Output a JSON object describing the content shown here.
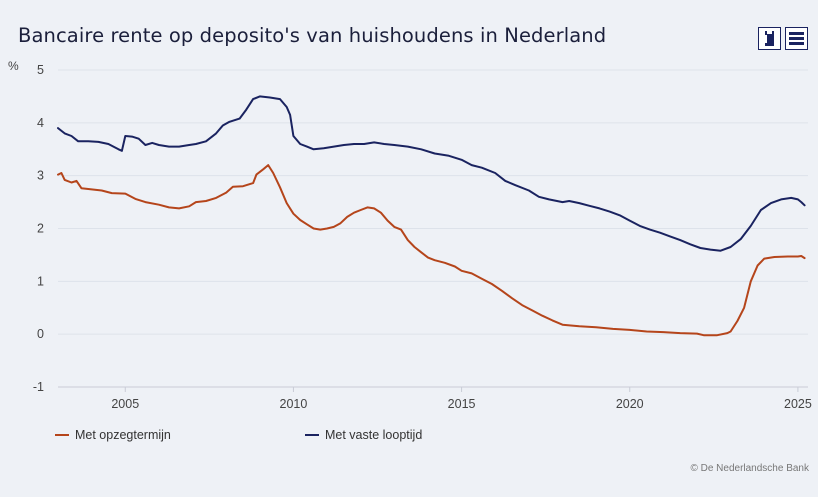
{
  "title": "Bancaire rente op deposito's van huishoudens in Nederland",
  "buttons": {
    "info": "info-icon",
    "menu": "menu-icon"
  },
  "credit": "© De Nederlandsche Bank",
  "colors": {
    "background": "#eef1f6",
    "opzeg": "#b5451b",
    "vast": "#1a2360",
    "grid": "#dde2ea"
  },
  "chart_data": {
    "type": "line",
    "title": "Bancaire rente op deposito's van huishoudens in Nederland",
    "xlabel": "",
    "ylabel": "%",
    "xlim": [
      2003,
      2025.3
    ],
    "ylim": [
      -1,
      5
    ],
    "yticks": [
      "-1",
      "0",
      "1",
      "2",
      "3",
      "4",
      "5"
    ],
    "xticks": [
      "2005",
      "2010",
      "2015",
      "2020",
      "2025"
    ],
    "grid": true,
    "legend_position": "bottom",
    "series": [
      {
        "name": "Met opzegtermijn",
        "color": "#b5451b",
        "points": [
          [
            2003.0,
            3.02
          ],
          [
            2003.1,
            3.05
          ],
          [
            2003.2,
            2.92
          ],
          [
            2003.4,
            2.87
          ],
          [
            2003.55,
            2.9
          ],
          [
            2003.7,
            2.76
          ],
          [
            2004.0,
            2.74
          ],
          [
            2004.3,
            2.72
          ],
          [
            2004.6,
            2.67
          ],
          [
            2005.0,
            2.66
          ],
          [
            2005.3,
            2.56
          ],
          [
            2005.6,
            2.5
          ],
          [
            2006.0,
            2.45
          ],
          [
            2006.3,
            2.4
          ],
          [
            2006.6,
            2.38
          ],
          [
            2006.9,
            2.42
          ],
          [
            2007.1,
            2.5
          ],
          [
            2007.4,
            2.52
          ],
          [
            2007.7,
            2.58
          ],
          [
            2008.0,
            2.68
          ],
          [
            2008.2,
            2.79
          ],
          [
            2008.5,
            2.8
          ],
          [
            2008.8,
            2.86
          ],
          [
            2008.9,
            3.02
          ],
          [
            2009.1,
            3.12
          ],
          [
            2009.25,
            3.2
          ],
          [
            2009.4,
            3.05
          ],
          [
            2009.6,
            2.78
          ],
          [
            2009.8,
            2.48
          ],
          [
            2010.0,
            2.28
          ],
          [
            2010.2,
            2.16
          ],
          [
            2010.4,
            2.08
          ],
          [
            2010.6,
            2.0
          ],
          [
            2010.8,
            1.98
          ],
          [
            2011.0,
            2.0
          ],
          [
            2011.2,
            2.03
          ],
          [
            2011.4,
            2.1
          ],
          [
            2011.6,
            2.22
          ],
          [
            2011.8,
            2.3
          ],
          [
            2012.0,
            2.35
          ],
          [
            2012.2,
            2.4
          ],
          [
            2012.4,
            2.38
          ],
          [
            2012.6,
            2.3
          ],
          [
            2012.8,
            2.15
          ],
          [
            2013.0,
            2.03
          ],
          [
            2013.2,
            1.98
          ],
          [
            2013.4,
            1.78
          ],
          [
            2013.6,
            1.65
          ],
          [
            2013.8,
            1.55
          ],
          [
            2014.0,
            1.45
          ],
          [
            2014.2,
            1.4
          ],
          [
            2014.5,
            1.35
          ],
          [
            2014.8,
            1.28
          ],
          [
            2015.0,
            1.2
          ],
          [
            2015.3,
            1.15
          ],
          [
            2015.6,
            1.05
          ],
          [
            2015.9,
            0.95
          ],
          [
            2016.2,
            0.82
          ],
          [
            2016.5,
            0.68
          ],
          [
            2016.8,
            0.55
          ],
          [
            2017.1,
            0.45
          ],
          [
            2017.4,
            0.35
          ],
          [
            2017.7,
            0.26
          ],
          [
            2018.0,
            0.18
          ],
          [
            2018.5,
            0.15
          ],
          [
            2019.0,
            0.13
          ],
          [
            2019.5,
            0.1
          ],
          [
            2020.0,
            0.08
          ],
          [
            2020.5,
            0.05
          ],
          [
            2021.0,
            0.04
          ],
          [
            2021.5,
            0.02
          ],
          [
            2022.0,
            0.01
          ],
          [
            2022.2,
            -0.02
          ],
          [
            2022.6,
            -0.02
          ],
          [
            2022.9,
            0.02
          ],
          [
            2023.0,
            0.05
          ],
          [
            2023.2,
            0.25
          ],
          [
            2023.4,
            0.5
          ],
          [
            2023.6,
            1.0
          ],
          [
            2023.8,
            1.3
          ],
          [
            2024.0,
            1.43
          ],
          [
            2024.3,
            1.46
          ],
          [
            2024.7,
            1.47
          ],
          [
            2025.0,
            1.47
          ],
          [
            2025.1,
            1.48
          ],
          [
            2025.2,
            1.44
          ]
        ]
      },
      {
        "name": "Met vaste looptijd",
        "color": "#1a2360",
        "points": [
          [
            2003.0,
            3.9
          ],
          [
            2003.2,
            3.8
          ],
          [
            2003.4,
            3.75
          ],
          [
            2003.6,
            3.65
          ],
          [
            2003.9,
            3.65
          ],
          [
            2004.2,
            3.64
          ],
          [
            2004.5,
            3.6
          ],
          [
            2004.8,
            3.5
          ],
          [
            2004.9,
            3.47
          ],
          [
            2005.0,
            3.75
          ],
          [
            2005.2,
            3.74
          ],
          [
            2005.4,
            3.7
          ],
          [
            2005.6,
            3.58
          ],
          [
            2005.8,
            3.62
          ],
          [
            2006.0,
            3.58
          ],
          [
            2006.3,
            3.55
          ],
          [
            2006.6,
            3.55
          ],
          [
            2006.9,
            3.58
          ],
          [
            2007.1,
            3.6
          ],
          [
            2007.4,
            3.65
          ],
          [
            2007.7,
            3.8
          ],
          [
            2007.9,
            3.95
          ],
          [
            2008.1,
            4.02
          ],
          [
            2008.4,
            4.08
          ],
          [
            2008.6,
            4.25
          ],
          [
            2008.8,
            4.45
          ],
          [
            2009.0,
            4.5
          ],
          [
            2009.3,
            4.48
          ],
          [
            2009.6,
            4.45
          ],
          [
            2009.8,
            4.3
          ],
          [
            2009.9,
            4.15
          ],
          [
            2010.0,
            3.75
          ],
          [
            2010.2,
            3.6
          ],
          [
            2010.4,
            3.55
          ],
          [
            2010.6,
            3.5
          ],
          [
            2010.9,
            3.52
          ],
          [
            2011.2,
            3.55
          ],
          [
            2011.5,
            3.58
          ],
          [
            2011.8,
            3.6
          ],
          [
            2012.1,
            3.6
          ],
          [
            2012.4,
            3.63
          ],
          [
            2012.7,
            3.6
          ],
          [
            2013.0,
            3.58
          ],
          [
            2013.4,
            3.55
          ],
          [
            2013.8,
            3.5
          ],
          [
            2014.2,
            3.42
          ],
          [
            2014.6,
            3.38
          ],
          [
            2015.0,
            3.3
          ],
          [
            2015.3,
            3.2
          ],
          [
            2015.6,
            3.15
          ],
          [
            2016.0,
            3.05
          ],
          [
            2016.3,
            2.9
          ],
          [
            2016.6,
            2.82
          ],
          [
            2017.0,
            2.72
          ],
          [
            2017.3,
            2.6
          ],
          [
            2017.6,
            2.55
          ],
          [
            2018.0,
            2.5
          ],
          [
            2018.2,
            2.52
          ],
          [
            2018.5,
            2.48
          ],
          [
            2018.8,
            2.43
          ],
          [
            2019.1,
            2.38
          ],
          [
            2019.4,
            2.32
          ],
          [
            2019.7,
            2.25
          ],
          [
            2020.0,
            2.15
          ],
          [
            2020.3,
            2.05
          ],
          [
            2020.6,
            1.98
          ],
          [
            2020.9,
            1.92
          ],
          [
            2021.2,
            1.85
          ],
          [
            2021.5,
            1.78
          ],
          [
            2021.8,
            1.7
          ],
          [
            2022.1,
            1.63
          ],
          [
            2022.4,
            1.6
          ],
          [
            2022.7,
            1.58
          ],
          [
            2023.0,
            1.65
          ],
          [
            2023.3,
            1.8
          ],
          [
            2023.6,
            2.05
          ],
          [
            2023.9,
            2.35
          ],
          [
            2024.2,
            2.48
          ],
          [
            2024.5,
            2.55
          ],
          [
            2024.8,
            2.58
          ],
          [
            2025.0,
            2.55
          ],
          [
            2025.1,
            2.5
          ],
          [
            2025.2,
            2.44
          ]
        ]
      }
    ]
  }
}
